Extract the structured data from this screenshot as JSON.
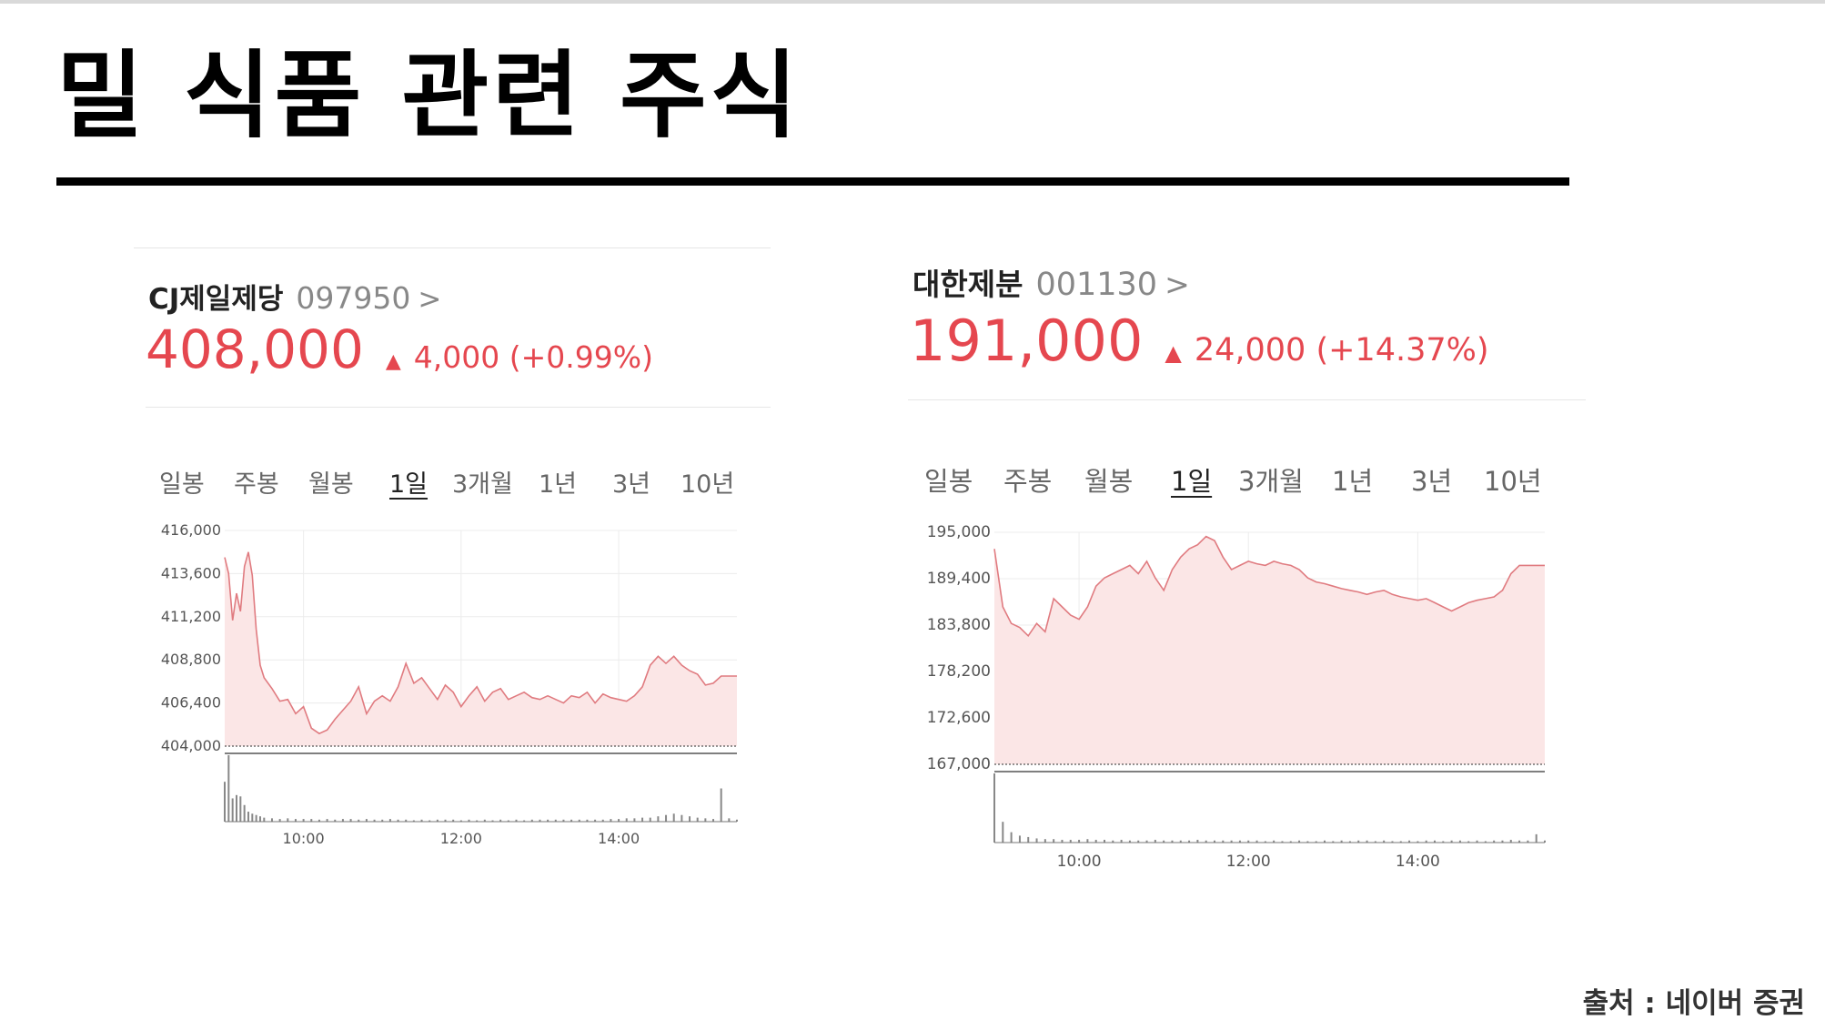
{
  "page": {
    "title": "밀 식품 관련 주식",
    "source": "출처 : 네이버 증권"
  },
  "tabs": [
    "일봉",
    "주봉",
    "월봉",
    "1일",
    "3개월",
    "1년",
    "3년",
    "10년"
  ],
  "active_tab": "1일",
  "colors": {
    "up": "#e5474f",
    "line": "#e07b80",
    "area": "#fbe6e6"
  },
  "stocks": [
    {
      "name": "CJ제일제당",
      "code": "097950",
      "chevron": ">",
      "price": "408,000",
      "arrow": "▲",
      "change": "4,000 (+0.99%)"
    },
    {
      "name": "대한제분",
      "code": "001130",
      "chevron": ">",
      "price": "191,000",
      "arrow": "▲",
      "change": "24,000 (+14.37%)"
    }
  ],
  "chart_data": [
    {
      "type": "area",
      "title": "",
      "y_ticks": [
        "416,000",
        "413,600",
        "411,200",
        "408,800",
        "406,400",
        "404,000"
      ],
      "ylim": [
        404000,
        416000
      ],
      "baseline": 404000,
      "x_ticks": [
        "10:00",
        "12:00",
        "14:00"
      ],
      "xlim": [
        9.0,
        15.5
      ],
      "x": [
        9.0,
        9.05,
        9.1,
        9.15,
        9.2,
        9.25,
        9.3,
        9.35,
        9.4,
        9.45,
        9.5,
        9.6,
        9.7,
        9.8,
        9.9,
        10.0,
        10.1,
        10.2,
        10.3,
        10.4,
        10.5,
        10.6,
        10.7,
        10.8,
        10.9,
        11.0,
        11.1,
        11.2,
        11.3,
        11.4,
        11.5,
        11.6,
        11.7,
        11.8,
        11.9,
        12.0,
        12.1,
        12.2,
        12.3,
        12.4,
        12.5,
        12.6,
        12.7,
        12.8,
        12.9,
        13.0,
        13.1,
        13.2,
        13.3,
        13.4,
        13.5,
        13.6,
        13.7,
        13.8,
        13.9,
        14.0,
        14.1,
        14.2,
        14.3,
        14.4,
        14.5,
        14.6,
        14.7,
        14.8,
        14.9,
        15.0,
        15.1,
        15.2,
        15.3,
        15.4,
        15.5
      ],
      "y": [
        414500,
        413600,
        411000,
        412500,
        411500,
        414000,
        414800,
        413500,
        410500,
        408500,
        407800,
        407200,
        406500,
        406600,
        405800,
        406200,
        405000,
        404700,
        404900,
        405500,
        406000,
        406500,
        407300,
        405800,
        406500,
        406800,
        406500,
        407300,
        408600,
        407500,
        407800,
        407200,
        406600,
        407400,
        407000,
        406200,
        406800,
        407300,
        406500,
        407000,
        407200,
        406600,
        406800,
        407000,
        406700,
        406600,
        406800,
        406600,
        406400,
        406800,
        406700,
        407000,
        406400,
        406900,
        406700,
        406600,
        406500,
        406800,
        407300,
        408500,
        409000,
        408600,
        409000,
        408500,
        408200,
        408000,
        407400,
        407500,
        407900,
        407900,
        407900
      ],
      "volume": [
        60,
        100,
        35,
        40,
        38,
        25,
        15,
        12,
        10,
        8,
        6,
        5,
        4,
        5,
        4,
        4,
        4,
        3,
        4,
        3,
        4,
        4,
        3,
        4,
        3,
        3,
        4,
        3,
        3,
        2,
        3,
        2,
        3,
        3,
        3,
        2,
        3,
        2,
        3,
        2,
        3,
        2,
        3,
        2,
        3,
        3,
        3,
        3,
        3,
        3,
        3,
        3,
        3,
        3,
        4,
        4,
        5,
        5,
        6,
        6,
        8,
        10,
        12,
        10,
        8,
        6,
        5,
        4,
        50,
        5,
        3
      ]
    },
    {
      "type": "area",
      "title": "",
      "y_ticks": [
        "195,000",
        "189,400",
        "183,800",
        "178,200",
        "172,600",
        "167,000"
      ],
      "ylim": [
        167000,
        195000
      ],
      "baseline": 167000,
      "x_ticks": [
        "10:00",
        "12:00",
        "14:00"
      ],
      "xlim": [
        9.0,
        15.5
      ],
      "x": [
        9.0,
        9.1,
        9.2,
        9.3,
        9.4,
        9.5,
        9.6,
        9.7,
        9.8,
        9.9,
        10.0,
        10.1,
        10.2,
        10.3,
        10.4,
        10.5,
        10.6,
        10.7,
        10.8,
        10.9,
        11.0,
        11.1,
        11.2,
        11.3,
        11.4,
        11.5,
        11.6,
        11.7,
        11.8,
        11.9,
        12.0,
        12.1,
        12.2,
        12.3,
        12.4,
        12.5,
        12.6,
        12.7,
        12.8,
        12.9,
        13.0,
        13.1,
        13.2,
        13.3,
        13.4,
        13.5,
        13.6,
        13.7,
        13.8,
        13.9,
        14.0,
        14.1,
        14.2,
        14.3,
        14.4,
        14.5,
        14.6,
        14.7,
        14.8,
        14.9,
        15.0,
        15.1,
        15.2,
        15.3,
        15.4,
        15.5
      ],
      "y": [
        193000,
        186000,
        184000,
        183500,
        182500,
        184000,
        183000,
        187000,
        186000,
        185000,
        184500,
        186000,
        188500,
        189500,
        190000,
        190500,
        191000,
        190000,
        191500,
        189500,
        188000,
        190500,
        192000,
        193000,
        193500,
        194500,
        194000,
        192000,
        190500,
        191000,
        191500,
        191200,
        191000,
        191500,
        191200,
        191000,
        190500,
        189500,
        189000,
        188800,
        188500,
        188200,
        188000,
        187800,
        187500,
        187800,
        188000,
        187500,
        187200,
        187000,
        186800,
        187000,
        186500,
        186000,
        185500,
        186000,
        186500,
        186800,
        187000,
        187200,
        188000,
        190000,
        191000,
        191000,
        191000,
        191000
      ],
      "volume": [
        100,
        30,
        15,
        10,
        8,
        6,
        5,
        5,
        4,
        4,
        4,
        5,
        4,
        4,
        3,
        4,
        3,
        3,
        3,
        4,
        3,
        3,
        3,
        3,
        4,
        3,
        3,
        3,
        3,
        3,
        3,
        3,
        2,
        3,
        2,
        2,
        3,
        2,
        2,
        3,
        2,
        3,
        2,
        3,
        3,
        2,
        3,
        2,
        2,
        3,
        2,
        3,
        3,
        2,
        3,
        3,
        2,
        3,
        2,
        3,
        3,
        4,
        3,
        3,
        12,
        3
      ]
    }
  ]
}
